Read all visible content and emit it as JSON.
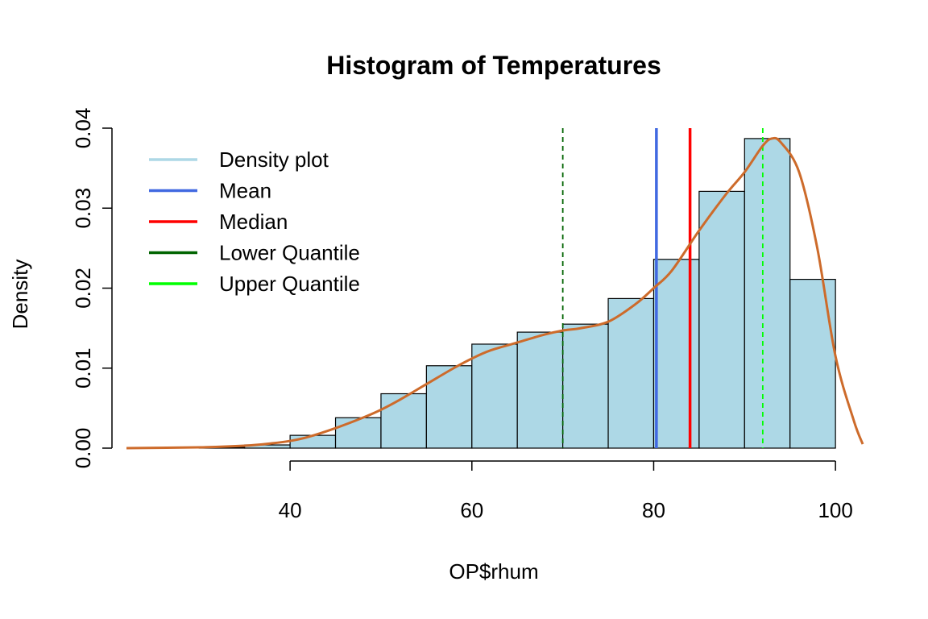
{
  "chart_data": {
    "type": "bar",
    "title": "Histogram of Temperatures",
    "xlabel": "OP$rhum",
    "ylabel": "Density",
    "xlim": [
      22,
      103
    ],
    "ylim": [
      0,
      0.04
    ],
    "x_ticks": [
      40,
      60,
      80,
      100
    ],
    "x_tick_labels": [
      "40",
      "60",
      "80",
      "100"
    ],
    "y_ticks": [
      0,
      0.01,
      0.02,
      0.03,
      0.04
    ],
    "y_tick_labels": [
      "0.00",
      "0.01",
      "0.02",
      "0.03",
      "0.04"
    ],
    "grid": false,
    "legend_position": "top-left",
    "bin_edges": [
      30,
      35,
      40,
      45,
      50,
      55,
      60,
      65,
      70,
      75,
      80,
      85,
      90,
      95,
      100
    ],
    "values": [
      0.0001,
      0.0004,
      0.0016,
      0.0038,
      0.0068,
      0.0103,
      0.013,
      0.0145,
      0.0155,
      0.0187,
      0.0236,
      0.0321,
      0.0387,
      0.0211
    ],
    "bar_fill": "#add8e6",
    "density_curve": {
      "color": "#cd6b2b",
      "x": [
        22,
        30,
        35,
        38,
        40,
        42,
        45,
        48,
        50,
        52,
        55,
        58,
        60,
        62,
        65,
        68,
        70,
        72,
        75,
        78,
        80,
        82,
        85,
        88,
        90,
        92,
        93,
        94,
        96,
        98,
        100,
        102,
        103
      ],
      "y": [
        0,
        0.0001,
        0.0003,
        0.0006,
        0.0009,
        0.0014,
        0.0025,
        0.0038,
        0.0048,
        0.006,
        0.008,
        0.01,
        0.0112,
        0.0122,
        0.0132,
        0.0142,
        0.0147,
        0.015,
        0.0158,
        0.018,
        0.02,
        0.0222,
        0.0272,
        0.0318,
        0.0345,
        0.0378,
        0.0387,
        0.0382,
        0.0345,
        0.025,
        0.0115,
        0.0035,
        0.0005
      ]
    },
    "reference_lines": [
      {
        "name": "Mean",
        "x": 80.3,
        "color": "#4169e1",
        "style": "solid"
      },
      {
        "name": "Median",
        "x": 84.0,
        "color": "#ff0000",
        "style": "solid"
      },
      {
        "name": "Lower Quantile",
        "x": 70.0,
        "color": "#006400",
        "style": "dashed"
      },
      {
        "name": "Upper Quantile",
        "x": 92.0,
        "color": "#00ff00",
        "style": "dashed"
      }
    ],
    "legend": [
      {
        "label": "Density plot",
        "color": "#add8e6"
      },
      {
        "label": "Mean",
        "color": "#4169e1"
      },
      {
        "label": "Median",
        "color": "#ff0000"
      },
      {
        "label": "Lower Quantile",
        "color": "#006400"
      },
      {
        "label": "Upper Quantile",
        "color": "#00ff00"
      }
    ]
  }
}
